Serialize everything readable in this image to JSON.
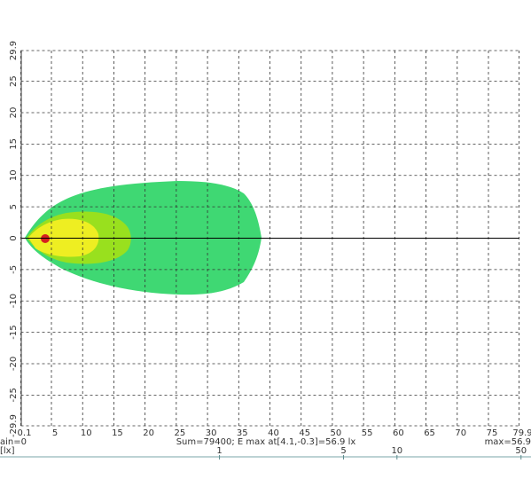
{
  "chart_data": {
    "type": "isolux",
    "xlim": [
      0.1,
      79.9
    ],
    "xticks": [
      0.1,
      5,
      10,
      15,
      20,
      25,
      30,
      35,
      40,
      45,
      50,
      55,
      60,
      65,
      70,
      75,
      79.9
    ],
    "ylim": [
      -29.9,
      29.9
    ],
    "yticks": [
      29.9,
      25,
      20,
      15,
      10,
      5,
      0,
      -5,
      -10,
      -15,
      -20,
      -25,
      -29.9
    ],
    "grid": true,
    "annotations": [
      "ain=0",
      "Sum=79400; E max at[4.1,-0.3]=56.9 lx",
      "max=56.9"
    ],
    "colorbar": {
      "label": "[lx]",
      "log": true,
      "lim": [
        0.058,
        56.9
      ],
      "ticks": [
        1,
        5,
        10,
        50
      ]
    }
  }
}
